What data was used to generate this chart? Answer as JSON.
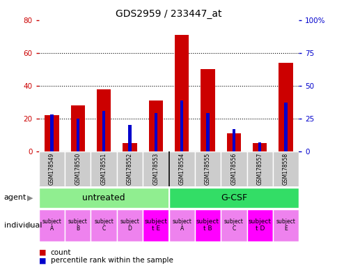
{
  "title": "GDS2959 / 233447_at",
  "samples": [
    "GSM178549",
    "GSM178550",
    "GSM178551",
    "GSM178552",
    "GSM178553",
    "GSM178554",
    "GSM178555",
    "GSM178556",
    "GSM178557",
    "GSM178558"
  ],
  "counts": [
    22,
    28,
    38,
    5,
    31,
    71,
    50,
    11,
    5,
    54
  ],
  "percentiles": [
    28,
    25,
    31,
    20,
    29,
    39,
    29,
    17,
    7,
    37
  ],
  "ylim_left": [
    0,
    80
  ],
  "ylim_right": [
    0,
    100
  ],
  "yticks_left": [
    0,
    20,
    40,
    60,
    80
  ],
  "yticks_right": [
    0,
    25,
    50,
    75,
    100
  ],
  "yticklabels_right": [
    "0",
    "25",
    "50",
    "75",
    "100%"
  ],
  "agent_groups": [
    {
      "label": "untreated",
      "start": 0,
      "end": 5,
      "color": "#90EE90"
    },
    {
      "label": "G-CSF",
      "start": 5,
      "end": 10,
      "color": "#33DD66"
    }
  ],
  "individuals": [
    "subject\nA",
    "subject\nB",
    "subject\nC",
    "subject\nD",
    "subject\nt E",
    "subject\nA",
    "subject\nt B",
    "subject\nC",
    "subject\nt D",
    "subject\nE"
  ],
  "individual_highlights": [
    4,
    6,
    8
  ],
  "individual_color_normal": "#EE82EE",
  "individual_color_highlight": "#FF00FF",
  "bar_color_red": "#CC0000",
  "bar_color_blue": "#0000CC",
  "bar_width": 0.55,
  "blue_bar_width": 0.12,
  "xlabel_area_color": "#CCCCCC",
  "left_axis_color": "#CC0000",
  "right_axis_color": "#0000CC"
}
